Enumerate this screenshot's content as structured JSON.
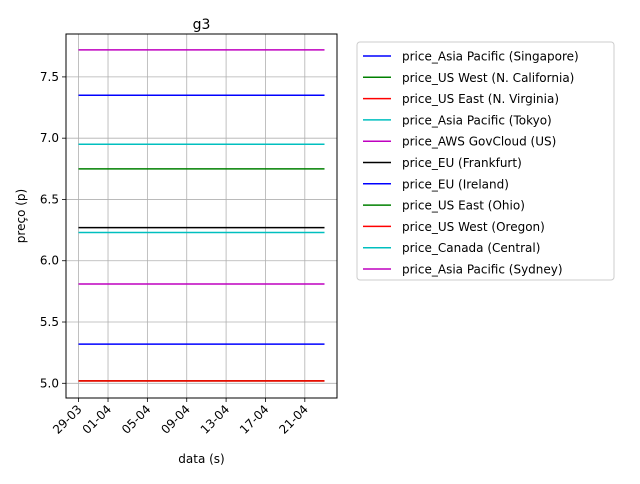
{
  "chart_data": {
    "type": "line",
    "title": "g3",
    "xlabel": "data (s)",
    "ylabel": "preço (p)",
    "x_range": [
      "2017-03-29",
      "2017-04-23"
    ],
    "x_ticks": [
      {
        "label": "29-03",
        "date": "2017-03-29"
      },
      {
        "label": "01-04",
        "date": "2017-04-01"
      },
      {
        "label": "05-04",
        "date": "2017-04-05"
      },
      {
        "label": "09-04",
        "date": "2017-04-09"
      },
      {
        "label": "13-04",
        "date": "2017-04-13"
      },
      {
        "label": "17-04",
        "date": "2017-04-17"
      },
      {
        "label": "21-04",
        "date": "2017-04-21"
      }
    ],
    "ylim": [
      4.88,
      7.85
    ],
    "y_ticks": [
      5.0,
      5.5,
      6.0,
      6.5,
      7.0,
      7.5
    ],
    "grid": true,
    "legend_position": "outside-right-top",
    "series": [
      {
        "name": "price_Asia Pacific (Singapore)",
        "color": "#0000ff",
        "values": [
          7.35,
          7.35
        ]
      },
      {
        "name": "price_US West (N. California)",
        "color": "#008000",
        "values": [
          6.75,
          6.75
        ]
      },
      {
        "name": "price_US East (N. Virginia)",
        "color": "#ff0000",
        "values": [
          5.02,
          5.02
        ]
      },
      {
        "name": "price_Asia Pacific (Tokyo)",
        "color": "#00bfbf",
        "values": [
          6.95,
          6.95
        ]
      },
      {
        "name": "price_AWS GovCloud (US)",
        "color": "#bf00bf",
        "values": [
          7.72,
          7.72
        ]
      },
      {
        "name": "price_EU (Frankfurt)",
        "color": "#000000",
        "values": [
          6.27,
          6.27
        ]
      },
      {
        "name": "price_EU (Ireland)",
        "color": "#0000ff",
        "values": [
          5.32,
          5.32
        ]
      },
      {
        "name": "price_US East (Ohio)",
        "color": "#008000",
        "values": [
          5.02,
          5.02
        ]
      },
      {
        "name": "price_US West (Oregon)",
        "color": "#ff0000",
        "values": [
          5.02,
          5.02
        ]
      },
      {
        "name": "price_Canada (Central)",
        "color": "#00bfbf",
        "values": [
          6.23,
          6.23
        ]
      },
      {
        "name": "price_Asia Pacific (Sydney)",
        "color": "#bf00bf",
        "values": [
          5.81,
          5.81
        ]
      }
    ],
    "series_x": [
      "2017-03-29",
      "2017-04-23"
    ]
  }
}
